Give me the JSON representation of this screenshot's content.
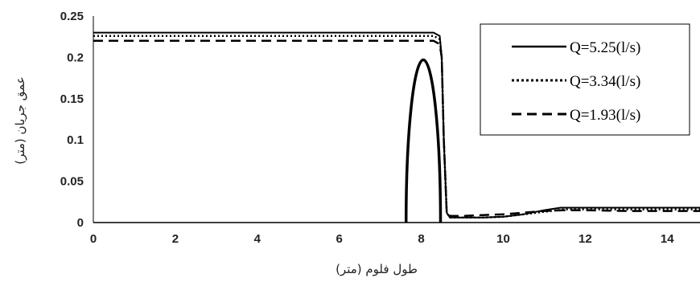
{
  "chart_data": {
    "type": "line",
    "title": "",
    "xlabel": "طول فلوم (متر)",
    "ylabel": "عمق جریان (متر)",
    "xlim": [
      0,
      14.8
    ],
    "ylim": [
      0,
      0.25
    ],
    "x_ticks": [
      "0",
      "2",
      "4",
      "6",
      "8",
      "10",
      "12",
      "14"
    ],
    "y_ticks": [
      "0",
      "0.05",
      "0.1",
      "0.15",
      "0.2",
      "0.25"
    ],
    "grid": false,
    "legend_position": "top-right",
    "series": [
      {
        "name": "Q=5.25(l/s)",
        "style": "solid",
        "x": [
          0,
          8.3,
          8.45,
          8.5,
          8.55,
          8.62,
          8.7,
          9.0,
          9.5,
          10.0,
          10.5,
          11.0,
          11.4,
          12.0,
          13.0,
          14.0,
          14.8
        ],
        "y": [
          0.23,
          0.23,
          0.226,
          0.2,
          0.1,
          0.012,
          0.006,
          0.006,
          0.006,
          0.007,
          0.01,
          0.015,
          0.018,
          0.018,
          0.018,
          0.018,
          0.018
        ]
      },
      {
        "name": "Q=3.34(l/s)",
        "style": "dotted",
        "x": [
          0,
          8.3,
          8.45,
          8.5,
          8.55,
          8.62,
          8.7,
          9.0,
          9.5,
          10.0,
          10.5,
          11.0,
          11.5,
          12.0,
          13.0,
          14.0,
          14.8
        ],
        "y": [
          0.226,
          0.226,
          0.222,
          0.2,
          0.1,
          0.012,
          0.006,
          0.006,
          0.006,
          0.007,
          0.01,
          0.013,
          0.016,
          0.016,
          0.016,
          0.016,
          0.016
        ]
      },
      {
        "name": "Q=1.93(l/s)",
        "style": "dashed",
        "x": [
          0,
          8.3,
          8.45,
          8.5,
          8.55,
          8.62,
          8.7,
          9.0,
          9.5,
          10.0,
          10.5,
          11.0,
          11.5,
          12.0,
          13.0,
          14.0,
          14.8
        ],
        "y": [
          0.22,
          0.22,
          0.216,
          0.2,
          0.1,
          0.012,
          0.008,
          0.008,
          0.009,
          0.01,
          0.012,
          0.014,
          0.015,
          0.015,
          0.014,
          0.014,
          0.014
        ]
      }
    ],
    "annotations": [
      {
        "type": "ellipse-obstacle",
        "center_x": 8.05,
        "half_width": 0.42,
        "bottom_y": 0,
        "top_y": 0.197
      }
    ]
  }
}
